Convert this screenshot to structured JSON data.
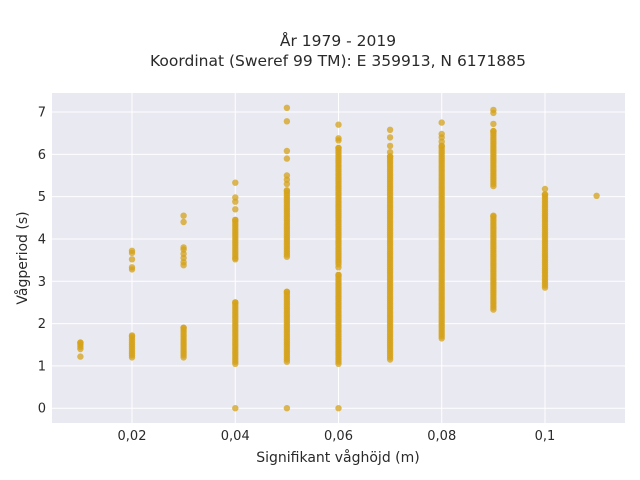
{
  "chart_data": {
    "type": "scatter",
    "title_line1": "År 1979 - 2019",
    "title_line2": "Koordinat (Sweref 99 TM): E 359913, N 6171885",
    "xlabel": "Signifikant våghöjd (m)",
    "ylabel": "Vågperiod (s)",
    "xlim": [
      0.0045,
      0.1155
    ],
    "ylim": [
      -0.35,
      7.45
    ],
    "x_ticks": [
      0.02,
      0.04,
      0.06,
      0.08,
      0.1
    ],
    "x_tick_labels": [
      "0,02",
      "0,04",
      "0,06",
      "0,08",
      "0,1"
    ],
    "y_ticks": [
      0,
      1,
      2,
      3,
      4,
      5,
      6,
      7
    ],
    "y_tick_labels": [
      "0",
      "1",
      "2",
      "3",
      "4",
      "5",
      "6",
      "7"
    ],
    "grid": true,
    "point_color": "#d4a21a",
    "plot_background": "#e9e9f1",
    "columns": [
      {
        "x": 0.01,
        "segments": [
          [
            1.4,
            1.55
          ]
        ],
        "points": [
          1.22
        ]
      },
      {
        "x": 0.02,
        "segments": [
          [
            1.2,
            1.72
          ]
        ],
        "points": [
          3.28,
          3.33,
          3.52,
          3.67,
          3.72
        ]
      },
      {
        "x": 0.03,
        "segments": [
          [
            1.2,
            1.9
          ]
        ],
        "points": [
          3.38,
          3.45,
          3.55,
          3.65,
          3.75,
          3.8,
          4.4,
          4.55
        ]
      },
      {
        "x": 0.04,
        "segments": [
          [
            1.05,
            2.5
          ],
          [
            3.55,
            4.45
          ]
        ],
        "points": [
          0,
          3.52,
          4.7,
          4.88,
          4.98,
          5.33
        ]
      },
      {
        "x": 0.05,
        "segments": [
          [
            1.1,
            2.75
          ],
          [
            3.58,
            5.15
          ]
        ],
        "points": [
          0,
          5.3,
          5.4,
          5.5,
          5.9,
          6.08,
          6.78,
          7.1
        ]
      },
      {
        "x": 0.06,
        "segments": [
          [
            1.05,
            3.15
          ],
          [
            3.4,
            6.15
          ]
        ],
        "points": [
          0,
          3.33,
          6.33,
          6.38,
          6.7
        ]
      },
      {
        "x": 0.07,
        "segments": [
          [
            1.15,
            5.95
          ]
        ],
        "points": [
          6.05,
          6.2,
          6.4,
          6.58
        ]
      },
      {
        "x": 0.08,
        "segments": [
          [
            1.65,
            6.2
          ]
        ],
        "points": [
          6.3,
          6.4,
          6.48,
          6.75
        ]
      },
      {
        "x": 0.09,
        "segments": [
          [
            2.33,
            4.55
          ],
          [
            5.25,
            6.55
          ]
        ],
        "points": [
          6.72,
          6.98,
          7.05
        ]
      },
      {
        "x": 0.1,
        "segments": [
          [
            2.85,
            5.05
          ]
        ],
        "points": [
          5.18
        ]
      },
      {
        "x": 0.11,
        "segments": [],
        "points": [
          5.02
        ]
      }
    ]
  }
}
